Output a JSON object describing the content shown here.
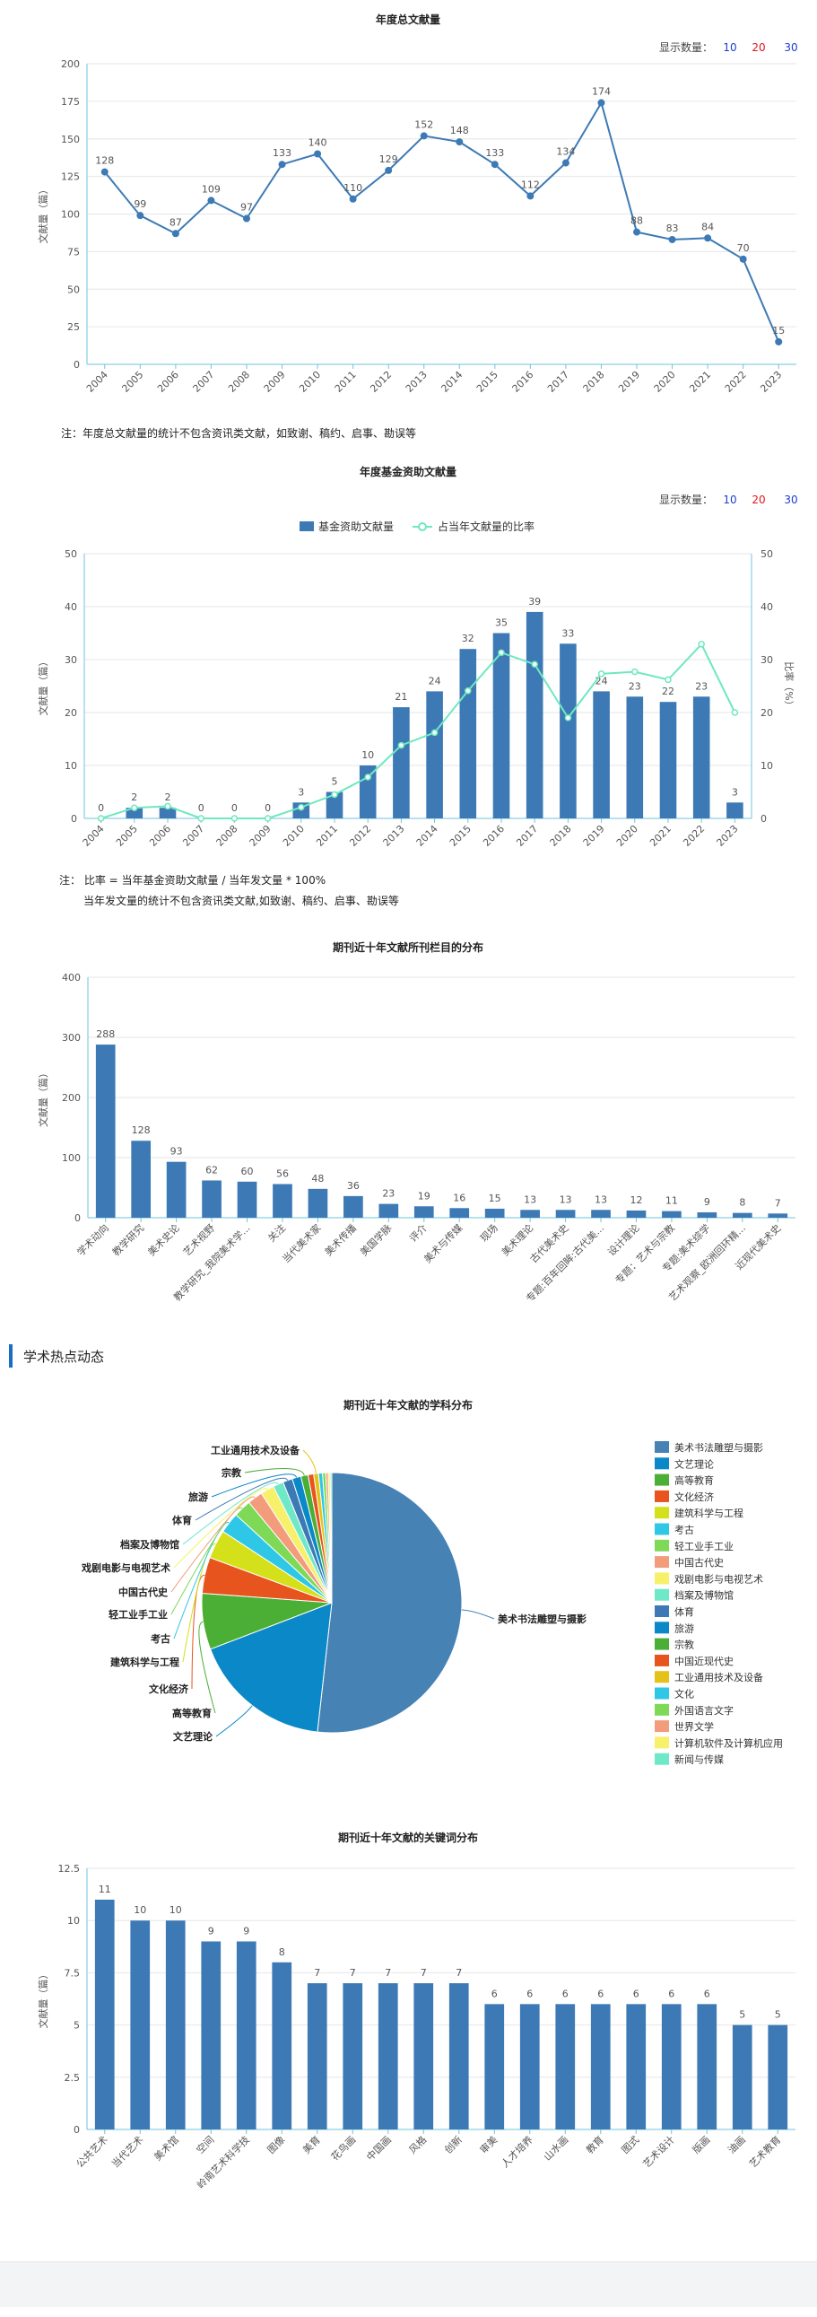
{
  "count_label": "显示数量：",
  "count_options": [
    {
      "label": "10",
      "color": "#1a3fd0"
    },
    {
      "label": "20",
      "color": "#e0161a"
    },
    {
      "label": "30",
      "color": "#1a3fd0"
    }
  ],
  "section_hot": "学术热点动态",
  "notes": {
    "total": "注：年度总文献量的统计不包含资讯类文献，如致谢、稿约、启事、勘误等",
    "fund_1": "注： 比率 = 当年基金资助文献量 / 当年发文量 * 100%",
    "fund_2": "当年发文量的统计不包含资讯类文献,如致谢、稿约、启事、勘误等"
  },
  "chart_data": [
    {
      "type": "line",
      "title": "年度总文献量",
      "ylabel": "文献量（篇）",
      "ylim": [
        0,
        200
      ],
      "yticks": [
        0,
        25,
        50,
        75,
        100,
        125,
        150,
        175,
        200
      ],
      "x": [
        "2004",
        "2005",
        "2006",
        "2007",
        "2008",
        "2009",
        "2010",
        "2011",
        "2012",
        "2013",
        "2014",
        "2015",
        "2016",
        "2017",
        "2018",
        "2019",
        "2020",
        "2021",
        "2022",
        "2023"
      ],
      "values": [
        128,
        99,
        87,
        109,
        97,
        133,
        140,
        110,
        129,
        152,
        148,
        133,
        112,
        134,
        174,
        88,
        83,
        84,
        70,
        15
      ],
      "color": "#3d7ab5"
    },
    {
      "type": "bar",
      "title": "年度基金资助文献量",
      "ylabel": "文献量（篇）",
      "y2label": "比率（%）",
      "ylim": [
        0,
        50
      ],
      "yticks": [
        0,
        10,
        20,
        30,
        40,
        50
      ],
      "x": [
        "2004",
        "2005",
        "2006",
        "2007",
        "2008",
        "2009",
        "2010",
        "2011",
        "2012",
        "2013",
        "2014",
        "2015",
        "2016",
        "2017",
        "2018",
        "2019",
        "2020",
        "2021",
        "2022",
        "2023"
      ],
      "series": [
        {
          "name": "基金资助文献量",
          "type": "bar",
          "color": "#3d7ab5",
          "values": [
            0,
            2,
            2,
            0,
            0,
            0,
            3,
            5,
            10,
            21,
            24,
            32,
            35,
            39,
            33,
            24,
            23,
            22,
            23,
            3
          ]
        },
        {
          "name": "占当年文献量的比率",
          "type": "line",
          "color": "#6fe8bf",
          "values": [
            0,
            2,
            2.3,
            0,
            0,
            0,
            2.1,
            4.5,
            7.8,
            13.8,
            16.2,
            24.1,
            31.3,
            29.1,
            19.0,
            27.3,
            27.7,
            26.2,
            32.9,
            20.0
          ]
        }
      ]
    },
    {
      "type": "bar",
      "title": "期刊近十年文献所刊栏目的分布",
      "ylabel": "文献量（篇）",
      "ylim": [
        0,
        400
      ],
      "yticks": [
        0,
        100,
        200,
        300,
        400
      ],
      "categories": [
        "学术动向",
        "教学研究",
        "美术史论",
        "艺术视野",
        "教学研究_我院美术学...",
        "关注",
        "当代美术家",
        "美术传播",
        "美国学脉",
        "评介",
        "美术与传媒",
        "现场",
        "美术理论",
        "古代美术史",
        "专题:百年回眸:古代美...",
        "设计理论",
        "专题：艺术与宗教",
        "专题:美术综学",
        "艺术观察_欧洲回环精...",
        "近现代美术史"
      ],
      "values": [
        288,
        128,
        93,
        62,
        60,
        56,
        48,
        36,
        23,
        19,
        16,
        15,
        13,
        13,
        13,
        12,
        11,
        9,
        8,
        7
      ],
      "color": "#3d7ab5"
    },
    {
      "type": "pie",
      "title": "期刊近十年文献的学科分布",
      "labels": [
        "美术书法雕塑与摄影",
        "文艺理论",
        "高等教育",
        "文化经济",
        "建筑科学与工程",
        "考古",
        "轻工业手工业",
        "中国古代史",
        "戏剧电影与电视艺术",
        "档案及博物馆",
        "体育",
        "旅游",
        "宗教",
        "中国近现代史",
        "工业通用技术及设备",
        "文化",
        "外国语言文字",
        "世界文学",
        "计算机软件及计算机应用",
        "新闻与传媒"
      ],
      "values": [
        52.0,
        17.5,
        7.0,
        4.5,
        3.6,
        2.6,
        2.2,
        1.9,
        1.7,
        1.3,
        1.2,
        1.1,
        0.9,
        0.7,
        0.6,
        0.5,
        0.4,
        0.3,
        0.25,
        0.2
      ],
      "colors": [
        "#4682b4",
        "#0a88c8",
        "#4caf35",
        "#e8541e",
        "#d4e01a",
        "#2fc7e6",
        "#7ed957",
        "#f39c7c",
        "#f7f06b",
        "#6fe8c7",
        "#3d7ab5",
        "#0a88c8",
        "#4caf35",
        "#e8541e",
        "#e5c217",
        "#2fc7e6",
        "#7ed957",
        "#f39c7c",
        "#f7f06b",
        "#6fe8c7"
      ],
      "callouts": [
        "美术书法雕塑与摄影",
        "文艺理论",
        "高等教育",
        "文化经济",
        "建筑科学与工程",
        "考古",
        "轻工业手工业",
        "中国古代史",
        "戏剧电影与电视艺术",
        "档案及博物馆",
        "体育",
        "旅游",
        "宗教",
        "工业通用技术及设备"
      ]
    },
    {
      "type": "bar",
      "title": "期刊近十年文献的关键词分布",
      "ylabel": "文献量（篇）",
      "ylim": [
        0,
        12.5
      ],
      "yticks": [
        0,
        2.5,
        5,
        7.5,
        10,
        12.5
      ],
      "categories": [
        "公共艺术",
        "当代艺术",
        "美术馆",
        "空间",
        "岭南艺术科学技",
        "图像",
        "美育",
        "花鸟画",
        "中国画",
        "风格",
        "创新",
        "审美",
        "人才培养",
        "山水画",
        "教育",
        "图式",
        "艺术设计",
        "版画",
        "油画",
        "艺术教育"
      ],
      "values": [
        11,
        10,
        10,
        9,
        9,
        8,
        7,
        7,
        7,
        7,
        7,
        6,
        6,
        6,
        6,
        6,
        6,
        6,
        5,
        5
      ],
      "color": "#3d7ab5"
    }
  ]
}
